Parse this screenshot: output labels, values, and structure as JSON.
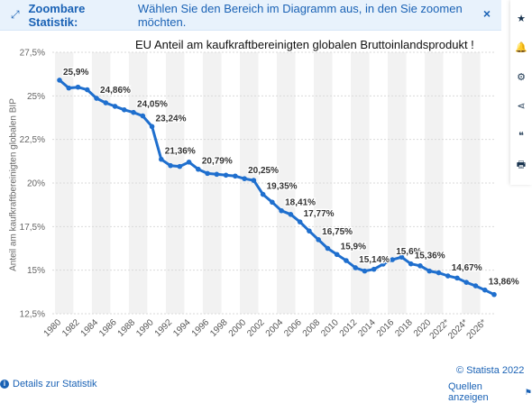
{
  "banner": {
    "icon": "expand-arrows-icon",
    "strong": "Zoombare Statistik:",
    "text": "Wählen Sie den Bereich im Diagramm aus, in den Sie zoomen möchten.",
    "close": "×"
  },
  "toolbar": [
    {
      "name": "star-icon",
      "glyph": "★"
    },
    {
      "name": "bell-icon",
      "glyph": "🔔"
    },
    {
      "name": "gear-icon",
      "glyph": "⚙"
    },
    {
      "name": "share-icon",
      "glyph": "⋖"
    },
    {
      "name": "quote-icon",
      "glyph": "❝"
    },
    {
      "name": "print-icon",
      "glyph": "🖶"
    }
  ],
  "footer": {
    "details": "Details zur Statistik",
    "copyright": "© Statista 2022",
    "sources": "Quellen anzeigen"
  },
  "colors": {
    "line": "#1f6fce",
    "accent": "#1a62b5",
    "band": "#f2f2f2"
  },
  "chart_data": {
    "type": "line",
    "title": "EU Anteil am kaufkraftbereinigten globalen Bruttoinlandsprodukt !",
    "ylabel": "Anteil am kaufkraftbereinigten globalen BIP",
    "xlabel": "",
    "ylim": [
      12.5,
      27.5
    ],
    "yticks": [
      "12,5%",
      "15%",
      "17,5%",
      "20%",
      "22,5%",
      "25%",
      "27,5%"
    ],
    "xtick_labels": [
      "1980",
      "1982",
      "1984",
      "1986",
      "1988",
      "1990",
      "1992",
      "1994",
      "1996",
      "1998",
      "2000",
      "2002",
      "2004",
      "2006",
      "2008",
      "2010",
      "2012",
      "2014",
      "2016",
      "2018",
      "2020",
      "2022*",
      "2024*",
      "2026*"
    ],
    "x": [
      1980,
      1981,
      1982,
      1983,
      1984,
      1985,
      1986,
      1987,
      1988,
      1989,
      1990,
      1991,
      1992,
      1993,
      1994,
      1995,
      1996,
      1997,
      1998,
      1999,
      2000,
      2001,
      2002,
      2003,
      2004,
      2005,
      2006,
      2007,
      2008,
      2009,
      2010,
      2011,
      2012,
      2013,
      2014,
      2015,
      2016,
      2017,
      2018,
      2019,
      2020,
      2021,
      2022,
      2023,
      2024,
      2025,
      2026,
      2027
    ],
    "values": [
      25.9,
      25.45,
      25.5,
      25.35,
      24.86,
      24.6,
      24.4,
      24.2,
      24.05,
      23.85,
      23.24,
      21.36,
      21.0,
      20.95,
      21.2,
      20.79,
      20.55,
      20.5,
      20.45,
      20.4,
      20.25,
      20.15,
      19.35,
      18.9,
      18.41,
      18.2,
      17.77,
      17.25,
      16.75,
      16.25,
      15.9,
      15.55,
      15.14,
      14.95,
      15.05,
      15.35,
      15.6,
      15.75,
      15.36,
      15.25,
      14.95,
      14.85,
      14.67,
      14.55,
      14.3,
      14.1,
      13.86,
      13.6
    ],
    "data_labels": [
      {
        "x": 1980,
        "text": "25,9%"
      },
      {
        "x": 1984,
        "text": "24,86%"
      },
      {
        "x": 1988,
        "text": "24,05%"
      },
      {
        "x": 1990,
        "text": "23,24%"
      },
      {
        "x": 1991,
        "text": "21,36%"
      },
      {
        "x": 1995,
        "text": "20,79%"
      },
      {
        "x": 2000,
        "text": "20,25%"
      },
      {
        "x": 2002,
        "text": "19,35%"
      },
      {
        "x": 2004,
        "text": "18,41%"
      },
      {
        "x": 2006,
        "text": "17,77%"
      },
      {
        "x": 2008,
        "text": "16,75%"
      },
      {
        "x": 2010,
        "text": "15,9%"
      },
      {
        "x": 2012,
        "text": "15,14%"
      },
      {
        "x": 2016,
        "text": "15,6%"
      },
      {
        "x": 2018,
        "text": "15,36%"
      },
      {
        "x": 2022,
        "text": "14,67%"
      },
      {
        "x": 2026,
        "text": "13,86%"
      }
    ],
    "grid": true,
    "legend": "none"
  }
}
